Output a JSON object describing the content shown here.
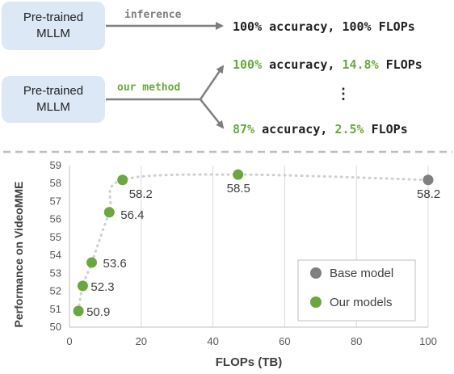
{
  "top": {
    "box1": {
      "line1": "Pre-trained",
      "line2": "MLLM"
    },
    "box2": {
      "line1": "Pre-trained",
      "line2": "MLLM"
    },
    "arrow1_label": "inference",
    "arrow2_label": "our method",
    "result1": {
      "acc": "100% accuracy,",
      "flops": "100% FLOPs"
    },
    "result2": {
      "acc_val": "100%",
      "acc_word": "accuracy,",
      "flops_val": "14.8%",
      "flops_word": "FLOPs"
    },
    "result3": {
      "acc_val": "87%",
      "acc_word": "accuracy,",
      "flops_val": "2.5%",
      "flops_word": "FLOPs"
    },
    "ellipsis": "⋮"
  },
  "colors": {
    "green": "#6aa83f",
    "grey": "#7f7f7f",
    "box": "#dce8f5"
  },
  "chart_data": {
    "type": "scatter",
    "xlabel": "FLOPs (TB)",
    "ylabel": "Performance on VideoMME",
    "xlim": [
      0,
      100
    ],
    "ylim": [
      50,
      59
    ],
    "xticks": [
      0,
      20,
      40,
      60,
      80,
      100
    ],
    "yticks": [
      50,
      51,
      52,
      53,
      54,
      55,
      56,
      57,
      58,
      59
    ],
    "grid": "vertical",
    "legend": "bottom-right",
    "series": [
      {
        "name": "Base model",
        "color": "#7f7f7f",
        "points": [
          {
            "x": 100,
            "y": 58.2,
            "label": "58.2"
          }
        ]
      },
      {
        "name": "Our models",
        "color": "#6aa83f",
        "points": [
          {
            "x": 2.5,
            "y": 50.9,
            "label": "50.9"
          },
          {
            "x": 3.7,
            "y": 52.3,
            "label": "52.3"
          },
          {
            "x": 6.2,
            "y": 53.6,
            "label": "53.6"
          },
          {
            "x": 11.1,
            "y": 56.4,
            "label": "56.4"
          },
          {
            "x": 14.8,
            "y": 58.2,
            "label": "58.2"
          },
          {
            "x": 47,
            "y": 58.5,
            "label": "58.5"
          }
        ]
      }
    ]
  }
}
